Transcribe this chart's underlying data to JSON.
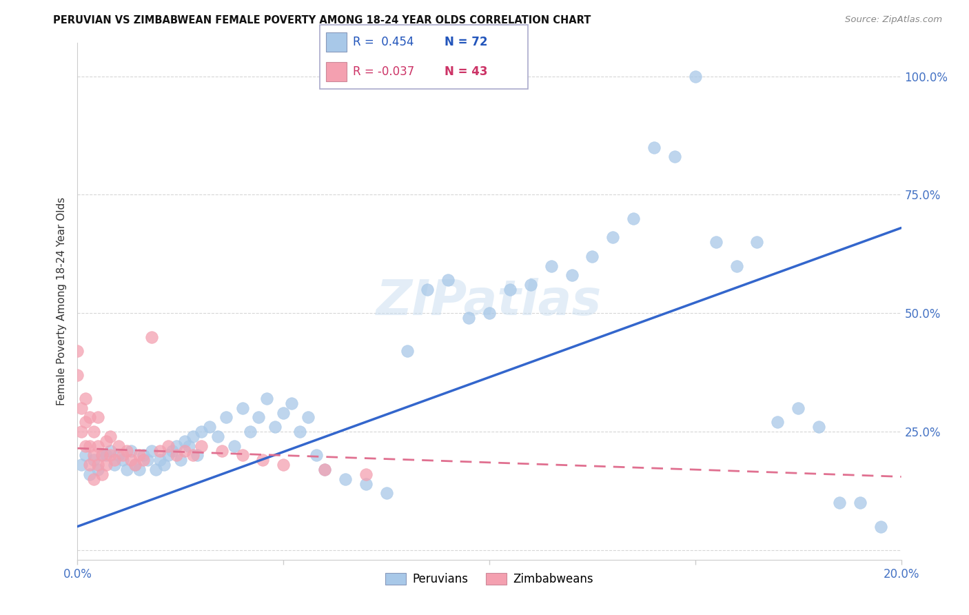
{
  "title": "PERUVIAN VS ZIMBABWEAN FEMALE POVERTY AMONG 18-24 YEAR OLDS CORRELATION CHART",
  "source": "Source: ZipAtlas.com",
  "ylabel": "Female Poverty Among 18-24 Year Olds",
  "xlim": [
    0.0,
    0.2
  ],
  "ylim": [
    -0.02,
    1.07
  ],
  "yticks": [
    0.0,
    0.25,
    0.5,
    0.75,
    1.0
  ],
  "ytick_labels": [
    "",
    "25.0%",
    "50.0%",
    "75.0%",
    "100.0%"
  ],
  "xticks": [
    0.0,
    0.05,
    0.1,
    0.15,
    0.2
  ],
  "xtick_labels": [
    "0.0%",
    "",
    "",
    "",
    "20.0%"
  ],
  "legend_R_peru": " 0.454",
  "legend_N_peru": "72",
  "legend_R_zimb": "-0.037",
  "legend_N_zimb": "43",
  "color_peru": "#a8c8e8",
  "color_zimb": "#f4a0b0",
  "color_trendline_peru": "#3366cc",
  "color_trendline_zimb": "#e07090",
  "peru_trendline_x0": 0.0,
  "peru_trendline_y0": 0.05,
  "peru_trendline_x1": 0.2,
  "peru_trendline_y1": 0.68,
  "zimb_trendline_x0": 0.0,
  "zimb_trendline_y0": 0.215,
  "zimb_trendline_x1": 0.2,
  "zimb_trendline_y1": 0.155,
  "peru_x": [
    0.001,
    0.002,
    0.003,
    0.004,
    0.005,
    0.006,
    0.007,
    0.008,
    0.009,
    0.01,
    0.011,
    0.012,
    0.013,
    0.014,
    0.015,
    0.016,
    0.017,
    0.018,
    0.019,
    0.02,
    0.021,
    0.022,
    0.023,
    0.024,
    0.025,
    0.026,
    0.027,
    0.028,
    0.029,
    0.03,
    0.032,
    0.034,
    0.036,
    0.038,
    0.04,
    0.042,
    0.044,
    0.046,
    0.048,
    0.05,
    0.052,
    0.054,
    0.056,
    0.058,
    0.06,
    0.065,
    0.07,
    0.075,
    0.08,
    0.085,
    0.09,
    0.095,
    0.1,
    0.105,
    0.11,
    0.115,
    0.12,
    0.125,
    0.13,
    0.135,
    0.14,
    0.145,
    0.15,
    0.155,
    0.16,
    0.165,
    0.17,
    0.175,
    0.18,
    0.185,
    0.19,
    0.195
  ],
  "peru_y": [
    0.18,
    0.2,
    0.16,
    0.19,
    0.17,
    0.2,
    0.2,
    0.21,
    0.18,
    0.2,
    0.19,
    0.17,
    0.21,
    0.18,
    0.17,
    0.2,
    0.19,
    0.21,
    0.17,
    0.19,
    0.18,
    0.2,
    0.21,
    0.22,
    0.19,
    0.23,
    0.22,
    0.24,
    0.2,
    0.25,
    0.26,
    0.24,
    0.28,
    0.22,
    0.3,
    0.25,
    0.28,
    0.32,
    0.26,
    0.29,
    0.31,
    0.25,
    0.28,
    0.2,
    0.17,
    0.15,
    0.14,
    0.12,
    0.42,
    0.55,
    0.57,
    0.49,
    0.5,
    0.55,
    0.56,
    0.6,
    0.58,
    0.62,
    0.66,
    0.7,
    0.85,
    0.83,
    1.0,
    0.65,
    0.6,
    0.65,
    0.27,
    0.3,
    0.26,
    0.1,
    0.1,
    0.05
  ],
  "zimb_x": [
    0.0,
    0.0,
    0.001,
    0.001,
    0.002,
    0.002,
    0.002,
    0.003,
    0.003,
    0.003,
    0.004,
    0.004,
    0.004,
    0.005,
    0.005,
    0.005,
    0.006,
    0.006,
    0.007,
    0.007,
    0.008,
    0.008,
    0.009,
    0.01,
    0.011,
    0.012,
    0.013,
    0.014,
    0.015,
    0.016,
    0.018,
    0.02,
    0.022,
    0.024,
    0.026,
    0.028,
    0.03,
    0.035,
    0.04,
    0.045,
    0.05,
    0.06,
    0.07
  ],
  "zimb_y": [
    0.37,
    0.42,
    0.25,
    0.3,
    0.22,
    0.27,
    0.32,
    0.18,
    0.22,
    0.28,
    0.15,
    0.2,
    0.25,
    0.18,
    0.22,
    0.28,
    0.16,
    0.2,
    0.18,
    0.23,
    0.2,
    0.24,
    0.19,
    0.22,
    0.2,
    0.21,
    0.19,
    0.18,
    0.2,
    0.19,
    0.45,
    0.21,
    0.22,
    0.2,
    0.21,
    0.2,
    0.22,
    0.21,
    0.2,
    0.19,
    0.18,
    0.17,
    0.16
  ]
}
